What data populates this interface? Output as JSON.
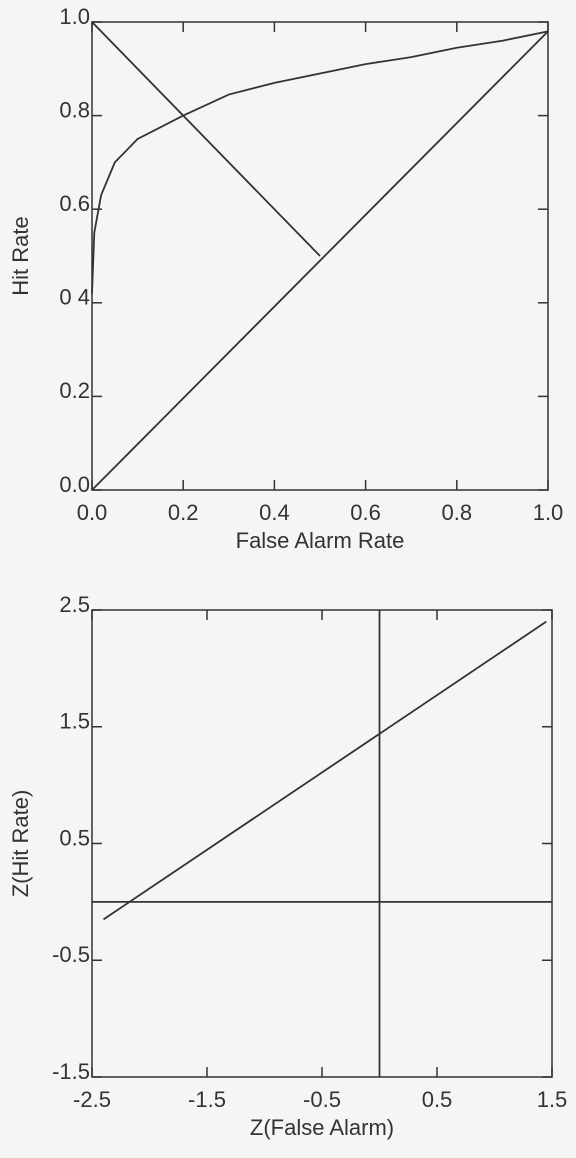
{
  "chart_data": [
    {
      "type": "line",
      "xlabel": "False Alarm Rate",
      "ylabel": "Hit Rate",
      "xlim": [
        0,
        1
      ],
      "ylim": [
        0,
        1
      ],
      "xticks": [
        {
          "value": 0,
          "label": "0.0"
        },
        0.2,
        0.4,
        0.6,
        0.8,
        {
          "value": 1,
          "label": "1.0"
        }
      ],
      "yticks": [
        {
          "value": 0,
          "label": "0.0"
        },
        0.2,
        {
          "value": 0.4,
          "label": "0 4"
        },
        0.6,
        0.8,
        {
          "value": 1,
          "label": "1.0"
        }
      ],
      "series": [
        {
          "color": "#333333",
          "x": [
            0,
            0.005,
            0.02,
            0.05,
            0.1,
            0.2,
            0.3,
            0.4,
            0.5,
            0.6,
            0.7,
            0.8,
            0.9,
            1.0
          ],
          "values": [
            0.42,
            0.55,
            0.63,
            0.7,
            0.75,
            0.8,
            0.845,
            0.87,
            0.89,
            0.91,
            0.925,
            0.945,
            0.96,
            0.98
          ]
        },
        {
          "color": "#333333",
          "x": [
            0,
            1.0
          ],
          "values": [
            0,
            0.98
          ]
        },
        {
          "color": "#333333",
          "x": [
            0,
            0.5
          ],
          "values": [
            1.0,
            0.5
          ]
        }
      ]
    },
    {
      "type": "line",
      "xlabel": "Z(False Alarm)",
      "ylabel": "Z(Hit Rate)",
      "xlim": [
        -2.5,
        1.5
      ],
      "ylim": [
        -1.5,
        2.5
      ],
      "xticks": [
        -2.5,
        -1.5,
        -0.5,
        0.5,
        1.5
      ],
      "yticks": [
        -1.5,
        -0.5,
        0.5,
        1.5,
        2.5
      ],
      "series": [
        {
          "color": "#333333",
          "x": [
            -2.4,
            1.45
          ],
          "values": [
            -0.15,
            2.4
          ]
        },
        {
          "color": "#333333",
          "x": [
            -2.5,
            1.5
          ],
          "values": [
            0,
            0
          ]
        },
        {
          "color": "#333333",
          "x": [
            0,
            0
          ],
          "values": [
            -1.5,
            2.5
          ]
        }
      ]
    }
  ]
}
